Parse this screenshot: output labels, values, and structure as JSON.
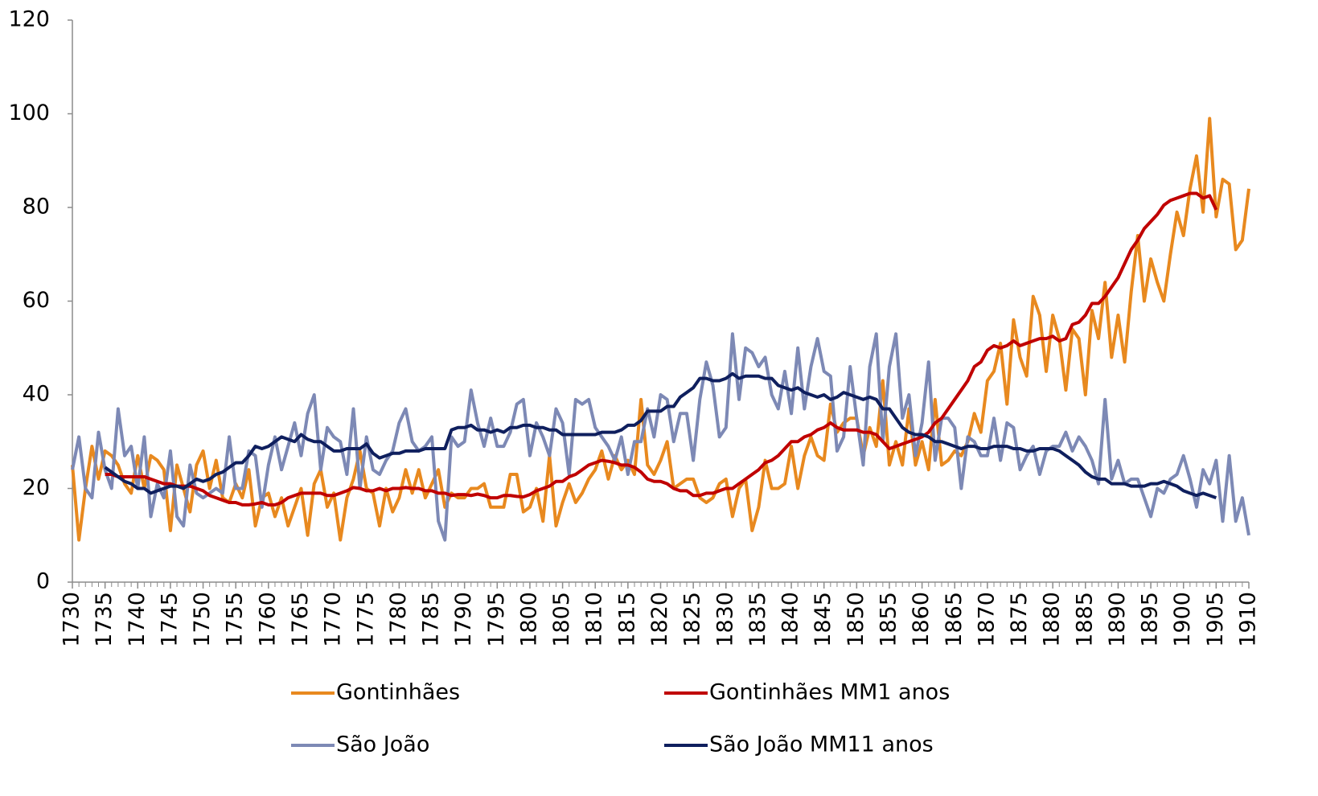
{
  "chart_data": {
    "type": "line",
    "x": [
      1730,
      1731,
      1732,
      1733,
      1734,
      1735,
      1736,
      1737,
      1738,
      1739,
      1740,
      1741,
      1742,
      1743,
      1744,
      1745,
      1746,
      1747,
      1748,
      1749,
      1750,
      1751,
      1752,
      1753,
      1754,
      1755,
      1756,
      1757,
      1758,
      1759,
      1760,
      1761,
      1762,
      1763,
      1764,
      1765,
      1766,
      1767,
      1768,
      1769,
      1770,
      1771,
      1772,
      1773,
      1774,
      1775,
      1776,
      1777,
      1778,
      1779,
      1780,
      1781,
      1782,
      1783,
      1784,
      1785,
      1786,
      1787,
      1788,
      1789,
      1790,
      1791,
      1792,
      1793,
      1794,
      1795,
      1796,
      1797,
      1798,
      1799,
      1800,
      1801,
      1802,
      1803,
      1804,
      1805,
      1806,
      1807,
      1808,
      1809,
      1810,
      1811,
      1812,
      1813,
      1814,
      1815,
      1816,
      1817,
      1818,
      1819,
      1820,
      1821,
      1822,
      1823,
      1824,
      1825,
      1826,
      1827,
      1828,
      1829,
      1830,
      1831,
      1832,
      1833,
      1834,
      1835,
      1836,
      1837,
      1838,
      1839,
      1840,
      1841,
      1842,
      1843,
      1844,
      1845,
      1846,
      1847,
      1848,
      1849,
      1850,
      1851,
      1852,
      1853,
      1854,
      1855,
      1856,
      1857,
      1858,
      1859,
      1860,
      1861,
      1862,
      1863,
      1864,
      1865,
      1866,
      1867,
      1868,
      1869,
      1870,
      1871,
      1872,
      1873,
      1874,
      1875,
      1876,
      1877,
      1878,
      1879,
      1880,
      1881,
      1882,
      1883,
      1884,
      1885,
      1886,
      1887,
      1888,
      1889,
      1890,
      1891,
      1892,
      1893,
      1894,
      1895,
      1896,
      1897,
      1898,
      1899,
      1900,
      1901,
      1902,
      1903,
      1904,
      1905,
      1906,
      1907,
      1908,
      1909,
      1910
    ],
    "series": [
      {
        "name": "Gontinhães",
        "color": "#E8891F",
        "values": [
          25,
          9,
          20,
          29,
          22,
          28,
          27,
          25,
          21,
          19,
          27,
          20,
          27,
          26,
          24,
          11,
          25,
          20,
          15,
          25,
          28,
          20,
          26,
          18,
          17,
          21,
          18,
          24,
          12,
          18,
          19,
          14,
          18,
          12,
          16,
          20,
          10,
          21,
          24,
          16,
          19,
          9,
          18,
          22,
          28,
          20,
          19,
          12,
          20,
          15,
          18,
          24,
          19,
          24,
          18,
          21,
          24,
          16,
          19,
          18,
          18,
          20,
          20,
          21,
          16,
          16,
          16,
          23,
          23,
          15,
          16,
          20,
          13,
          27,
          12,
          17,
          21,
          17,
          19,
          22,
          24,
          28,
          22,
          27,
          24,
          26,
          23,
          39,
          25,
          23,
          26,
          30,
          20,
          21,
          22,
          22,
          18,
          17,
          18,
          21,
          22,
          14,
          20,
          22,
          11,
          16,
          26,
          20,
          20,
          21,
          29,
          20,
          27,
          31,
          27,
          26,
          38,
          32,
          34,
          35,
          35,
          27,
          33,
          29,
          43,
          25,
          30,
          25,
          37,
          25,
          30,
          24,
          39,
          25,
          26,
          28,
          27,
          30,
          36,
          32,
          43,
          45,
          51,
          38,
          56,
          48,
          44,
          61,
          57,
          45,
          57,
          52,
          41,
          54,
          52,
          40,
          58,
          52,
          64,
          48,
          57,
          47,
          62,
          74,
          60,
          69,
          64,
          60,
          70,
          79,
          74,
          84,
          91,
          79,
          99,
          78,
          86,
          85,
          71,
          73,
          84
        ]
      },
      {
        "name": "Gontinhães MM1 anos",
        "color": "#C00000",
        "values": [
          null,
          null,
          null,
          null,
          null,
          23,
          23,
          22.5,
          22.5,
          22.5,
          22.5,
          22.5,
          22,
          21.5,
          21,
          21,
          20.5,
          20.5,
          20.5,
          20,
          19.5,
          18.5,
          18,
          17.5,
          17,
          17,
          16.5,
          16.5,
          16.7,
          17,
          16.5,
          16.5,
          17,
          18,
          18.5,
          19,
          19,
          19,
          19,
          18.5,
          18.5,
          19,
          19.5,
          20.2,
          20,
          19.5,
          19.5,
          20,
          19.5,
          20,
          20,
          20.2,
          20,
          20,
          19.5,
          19.5,
          19,
          19,
          18.5,
          18.7,
          18.7,
          18.5,
          18.8,
          18.5,
          18,
          18,
          18.5,
          18.5,
          18.3,
          18.2,
          18.7,
          19.5,
          20,
          20.5,
          21.5,
          21.5,
          22.5,
          23,
          24,
          25,
          25.5,
          26,
          25.8,
          25.5,
          25,
          25,
          24.5,
          23.5,
          22,
          21.5,
          21.5,
          21,
          20,
          19.5,
          19.5,
          18.5,
          18.5,
          19,
          19,
          19.5,
          20,
          20,
          21,
          22,
          23,
          24,
          25.5,
          26,
          27,
          28.5,
          30,
          30,
          31,
          31.5,
          32.5,
          33,
          34,
          33,
          32.5,
          32.5,
          32.5,
          32,
          32,
          31.5,
          30,
          28.5,
          29,
          29.5,
          30,
          30.5,
          31,
          32,
          34,
          35,
          37,
          39,
          41,
          43,
          46,
          47,
          49.5,
          50.5,
          50,
          50.5,
          51.5,
          50.5,
          51,
          51.5,
          52,
          52,
          52.5,
          51.5,
          52,
          55,
          55.5,
          57,
          59.5,
          59.5,
          61,
          63,
          65,
          68,
          71,
          73,
          75.5,
          77,
          78.5,
          80.5,
          81.5,
          82,
          82.5,
          83,
          83,
          82,
          82.5,
          79.5,
          null,
          null,
          null,
          null,
          null
        ]
      },
      {
        "name": "São João",
        "color": "#7D89B5",
        "values": [
          24,
          31,
          20,
          18,
          32,
          24,
          20,
          37,
          27,
          29,
          20,
          31,
          14,
          21,
          18,
          28,
          14,
          12,
          25,
          19,
          18,
          19,
          20,
          19,
          31,
          20,
          20,
          28,
          27,
          16,
          25,
          31,
          24,
          29,
          34,
          27,
          36,
          40,
          24,
          33,
          31,
          30,
          23,
          37,
          20,
          31,
          24,
          23,
          26,
          28,
          34,
          37,
          30,
          28,
          29,
          31,
          13,
          9,
          31,
          29,
          30,
          41,
          34,
          29,
          35,
          29,
          29,
          32,
          38,
          39,
          27,
          34,
          31,
          27,
          37,
          34,
          23,
          39,
          38,
          39,
          33,
          31,
          29,
          26,
          31,
          23,
          30,
          30,
          37,
          31,
          40,
          39,
          30,
          36,
          36,
          26,
          39,
          47,
          42,
          31,
          33,
          53,
          39,
          50,
          49,
          46,
          48,
          40,
          37,
          45,
          36,
          50,
          37,
          46,
          52,
          45,
          44,
          28,
          31,
          46,
          35,
          25,
          46,
          53,
          30,
          46,
          53,
          35,
          40,
          27,
          34,
          47,
          26,
          35,
          35,
          33,
          20,
          31,
          30,
          27,
          27,
          35,
          26,
          34,
          33,
          24,
          27,
          29,
          23,
          28,
          29,
          29,
          32,
          28,
          31,
          29,
          26,
          21,
          39,
          22,
          26,
          21,
          22,
          22,
          18,
          14,
          20,
          19,
          22,
          23,
          27,
          22,
          16,
          24,
          21,
          26,
          13,
          27,
          13,
          18,
          10
        ]
      },
      {
        "name": "São João MM11 anos",
        "color": "#0F1F5E",
        "values": [
          null,
          null,
          null,
          null,
          null,
          24.5,
          23.5,
          22.5,
          21.5,
          21,
          20,
          20,
          19,
          19.5,
          20,
          20.5,
          20.5,
          20,
          21,
          22,
          21.5,
          22,
          23,
          23.5,
          24.5,
          25.5,
          25.5,
          27,
          29,
          28.5,
          29,
          30,
          31,
          30.5,
          30,
          31.5,
          30.5,
          30,
          30,
          29,
          28,
          28,
          28.5,
          28.5,
          28.5,
          29.5,
          27.5,
          26.5,
          27,
          27.5,
          27.5,
          28,
          28,
          28,
          28.5,
          28.5,
          28.5,
          28.5,
          32.5,
          33,
          33,
          33.5,
          32.5,
          32.5,
          32,
          32.5,
          32,
          33,
          33,
          33.5,
          33.5,
          33,
          33,
          32.5,
          32.5,
          31.5,
          31.5,
          31.5,
          31.5,
          31.5,
          31.5,
          32,
          32,
          32,
          32.5,
          33.5,
          33.5,
          34.5,
          36.5,
          36.5,
          36.5,
          37.5,
          37.5,
          39.5,
          40.5,
          41.5,
          43.5,
          43.5,
          43,
          43,
          43.5,
          44.5,
          43.5,
          44,
          44,
          44,
          43.5,
          43.5,
          42,
          41.5,
          41,
          41.5,
          40.5,
          40,
          39.5,
          40,
          39,
          39.5,
          40.5,
          40,
          39.5,
          39,
          39.5,
          39,
          37,
          37,
          35,
          33,
          32,
          31.5,
          31.5,
          31,
          30,
          30,
          29.5,
          29,
          28.5,
          29,
          29,
          28.5,
          28.5,
          29,
          29,
          29,
          28.5,
          28.5,
          28,
          28,
          28.5,
          28.5,
          28.5,
          28,
          27,
          26,
          25,
          23.5,
          22.5,
          22,
          22,
          21,
          21,
          21,
          20.5,
          20.5,
          20.5,
          21,
          21,
          21.5,
          21,
          20.5,
          19.5,
          19,
          18.5,
          19,
          18.5,
          18,
          null,
          null,
          null,
          null,
          null
        ]
      }
    ],
    "xlim": [
      1730,
      1910
    ],
    "xticks": [
      1730,
      1735,
      1740,
      1745,
      1750,
      1755,
      1760,
      1765,
      1770,
      1775,
      1780,
      1785,
      1790,
      1795,
      1800,
      1805,
      1810,
      1815,
      1820,
      1825,
      1830,
      1835,
      1840,
      1845,
      1850,
      1855,
      1860,
      1865,
      1870,
      1875,
      1880,
      1885,
      1890,
      1895,
      1900,
      1905,
      1910
    ],
    "ylim": [
      0,
      120
    ],
    "yticks": [
      0,
      20,
      40,
      60,
      80,
      100,
      120
    ],
    "grid": false,
    "legend": "bottom"
  }
}
